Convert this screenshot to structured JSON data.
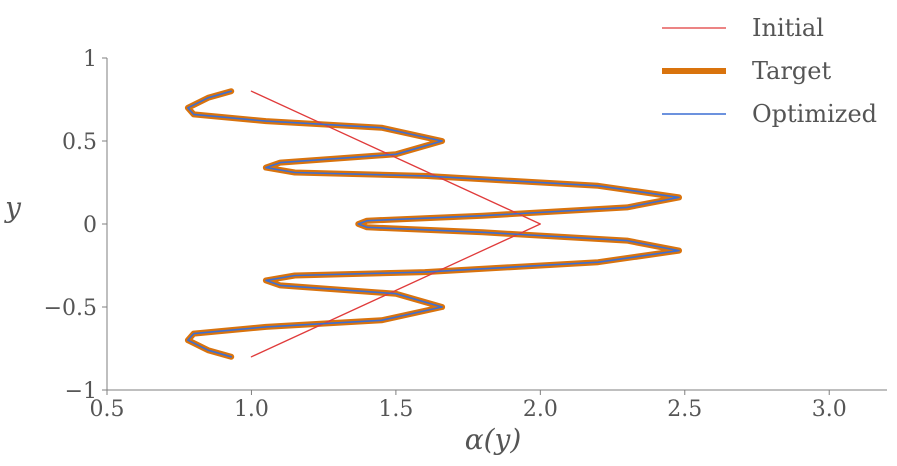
{
  "chart_data": {
    "type": "line",
    "title": "",
    "xlabel": "α(y)",
    "ylabel": "y",
    "xlim": [
      0.5,
      3.2
    ],
    "ylim": [
      -1,
      1
    ],
    "xticks": [
      0.5,
      1.0,
      1.5,
      2.0,
      2.5,
      3.0
    ],
    "xtick_labels": [
      "0.5",
      "1.0",
      "1.5",
      "2.0",
      "2.5",
      "3.0"
    ],
    "yticks": [
      -1,
      -0.5,
      0,
      0.5,
      1
    ],
    "ytick_labels": [
      "−1",
      "−0.5",
      "0",
      "0.5",
      "1"
    ],
    "grid": false,
    "legend_position": "top-right",
    "series": [
      {
        "name": "Initial",
        "color": "#e03b3b",
        "points": [
          [
            1.0,
            0.8
          ],
          [
            2.0,
            0.0
          ],
          [
            1.0,
            -0.8
          ]
        ]
      },
      {
        "name": "Target",
        "color": "#d9730d",
        "points": [
          [
            0.93,
            0.8
          ],
          [
            0.85,
            0.76
          ],
          [
            0.78,
            0.7
          ],
          [
            0.8,
            0.66
          ],
          [
            1.05,
            0.62
          ],
          [
            1.45,
            0.58
          ],
          [
            1.66,
            0.5
          ],
          [
            1.5,
            0.42
          ],
          [
            1.1,
            0.37
          ],
          [
            1.05,
            0.34
          ],
          [
            1.15,
            0.31
          ],
          [
            1.6,
            0.29
          ],
          [
            2.2,
            0.23
          ],
          [
            2.48,
            0.16
          ],
          [
            2.3,
            0.1
          ],
          [
            1.8,
            0.05
          ],
          [
            1.4,
            0.02
          ],
          [
            1.37,
            0.0
          ],
          [
            1.4,
            -0.02
          ],
          [
            1.8,
            -0.05
          ],
          [
            2.3,
            -0.1
          ],
          [
            2.48,
            -0.16
          ],
          [
            2.2,
            -0.23
          ],
          [
            1.6,
            -0.29
          ],
          [
            1.15,
            -0.31
          ],
          [
            1.05,
            -0.34
          ],
          [
            1.1,
            -0.37
          ],
          [
            1.5,
            -0.42
          ],
          [
            1.66,
            -0.5
          ],
          [
            1.45,
            -0.58
          ],
          [
            1.05,
            -0.62
          ],
          [
            0.8,
            -0.66
          ],
          [
            0.78,
            -0.7
          ],
          [
            0.85,
            -0.76
          ],
          [
            0.93,
            -0.8
          ]
        ]
      },
      {
        "name": "Optimized",
        "color": "#3b6fd4",
        "points": [
          [
            0.93,
            0.8
          ],
          [
            0.85,
            0.76
          ],
          [
            0.78,
            0.7
          ],
          [
            0.8,
            0.66
          ],
          [
            1.05,
            0.62
          ],
          [
            1.45,
            0.58
          ],
          [
            1.66,
            0.5
          ],
          [
            1.5,
            0.42
          ],
          [
            1.1,
            0.37
          ],
          [
            1.05,
            0.34
          ],
          [
            1.15,
            0.31
          ],
          [
            1.6,
            0.29
          ],
          [
            2.2,
            0.23
          ],
          [
            2.48,
            0.16
          ],
          [
            2.3,
            0.1
          ],
          [
            1.8,
            0.05
          ],
          [
            1.4,
            0.02
          ],
          [
            1.37,
            0.0
          ],
          [
            1.4,
            -0.02
          ],
          [
            1.8,
            -0.05
          ],
          [
            2.3,
            -0.1
          ],
          [
            2.48,
            -0.16
          ],
          [
            2.2,
            -0.23
          ],
          [
            1.6,
            -0.29
          ],
          [
            1.15,
            -0.31
          ],
          [
            1.05,
            -0.34
          ],
          [
            1.1,
            -0.37
          ],
          [
            1.5,
            -0.42
          ],
          [
            1.66,
            -0.5
          ],
          [
            1.45,
            -0.58
          ],
          [
            1.05,
            -0.62
          ],
          [
            0.8,
            -0.66
          ],
          [
            0.78,
            -0.7
          ],
          [
            0.85,
            -0.76
          ],
          [
            0.93,
            -0.8
          ]
        ]
      }
    ]
  }
}
